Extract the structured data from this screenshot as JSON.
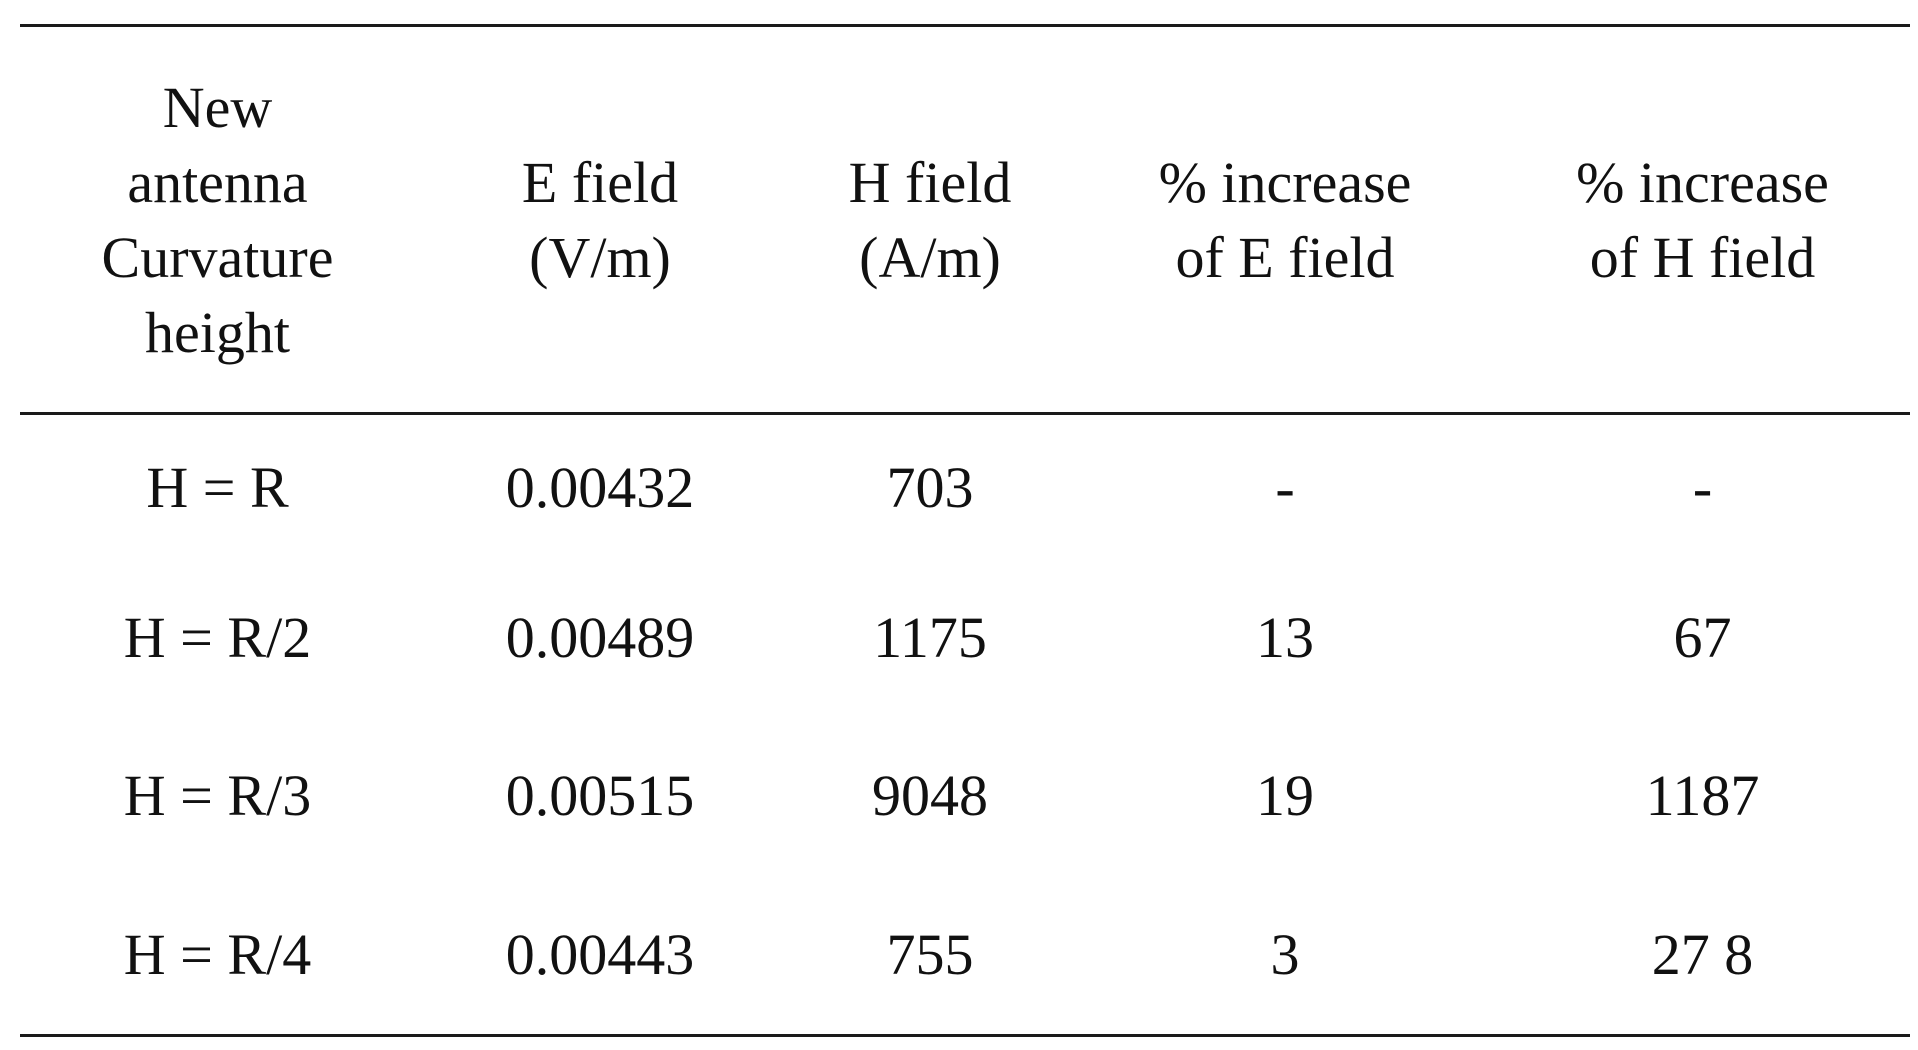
{
  "table": {
    "headers": [
      [
        "New",
        "antenna",
        "Curvature",
        "height"
      ],
      [
        "E field",
        "(V/m)"
      ],
      [
        "H field",
        "(A/m)"
      ],
      [
        "% increase",
        "of E field"
      ],
      [
        "% increase",
        "of H field"
      ]
    ],
    "rows": [
      [
        "H = R",
        "0.00432",
        "703",
        "-",
        "-"
      ],
      [
        "H = R/2",
        "0.00489",
        "1175",
        "13",
        "67"
      ],
      [
        "H = R/3",
        "0.00515",
        "9048",
        "19",
        "1187"
      ],
      [
        "H = R/4",
        "0.00443",
        "755",
        "3",
        "27 8"
      ]
    ]
  }
}
